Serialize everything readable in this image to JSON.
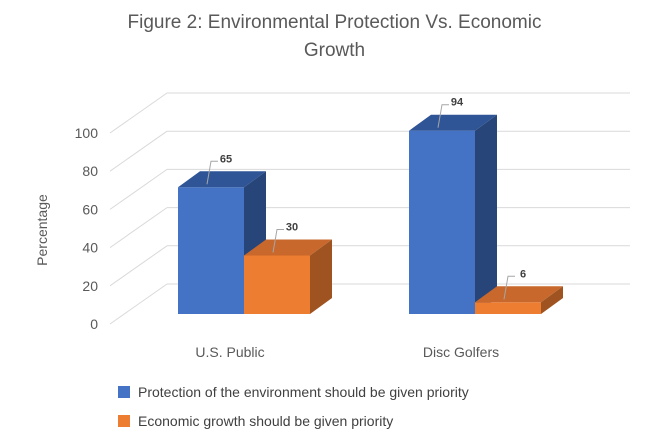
{
  "chart_data": {
    "type": "bar",
    "subtype": "3d-clustered-column",
    "title": "Figure 2: Environmental Protection Vs. Economic Growth",
    "categories": [
      "U.S. Public",
      "Disc Golfers"
    ],
    "series": [
      {
        "name": "Protection of the environment should be given priority",
        "values": [
          65,
          94
        ],
        "colors": {
          "front": "#4472C4",
          "top": "#2F5597",
          "side": "#274578"
        }
      },
      {
        "name": "Economic growth should be given priority",
        "values": [
          30,
          6
        ],
        "colors": {
          "front": "#ED7D31",
          "top": "#C8682C",
          "side": "#9E5320"
        }
      }
    ],
    "xlabel": "",
    "ylabel": "Percentage",
    "ylim": [
      0,
      100
    ],
    "yticks": [
      0,
      20,
      40,
      60,
      80,
      100
    ],
    "grid": true,
    "data_labels": true,
    "legend_position": "bottom-left"
  },
  "style": {
    "background": "#FFFFFF",
    "title_color": "#595959",
    "axis_text_color": "#595959",
    "gridline_color": "#D9D9D9",
    "leader_line_color": "#A6A6A6",
    "data_label_color": "#404040",
    "legend_text_color": "#404040"
  }
}
